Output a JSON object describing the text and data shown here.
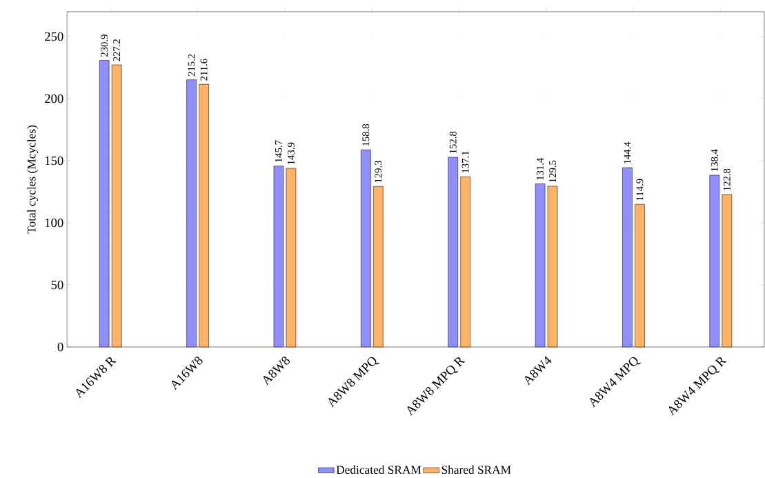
{
  "chart_data": {
    "type": "bar",
    "ylabel": "Total cycles (Mcycles)",
    "categories": [
      "A16W8 R",
      "A16W8",
      "A8W8",
      "A8W8 MPQ",
      "A8W8 MPQ R",
      "A8W4",
      "A8W4 MPQ",
      "A8W4 MPQ R"
    ],
    "series": [
      {
        "name": "Dedicated SRAM",
        "color": "#8f8fff",
        "values": [
          230.9,
          215.2,
          145.7,
          158.8,
          152.8,
          131.4,
          144.4,
          138.4
        ]
      },
      {
        "name": "Shared SRAM",
        "color": "#ffb366",
        "values": [
          227.2,
          211.6,
          143.9,
          129.3,
          137.1,
          129.5,
          114.9,
          122.8
        ]
      }
    ],
    "ylim": [
      0,
      270
    ],
    "yticks": [
      0,
      50,
      100,
      150,
      200,
      250
    ],
    "grid": true,
    "legend": "bottom",
    "data_labels": true
  }
}
